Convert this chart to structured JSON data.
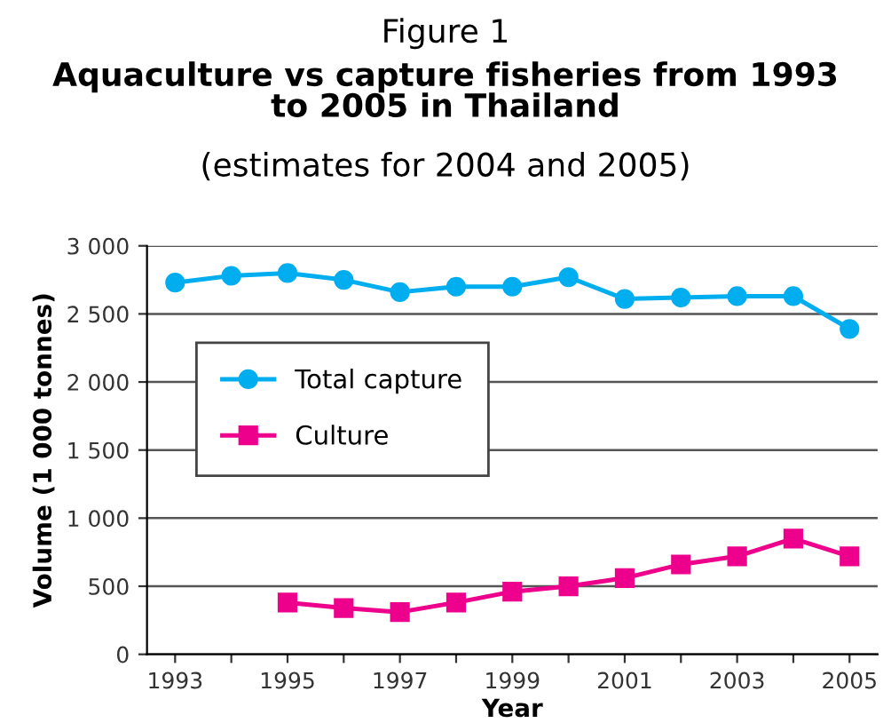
{
  "chart_data": {
    "type": "line",
    "title": "Aquaculture vs capture fisheries from 1993\nto 2005 in Thailand",
    "subtitle": "(estimates for 2004 and 2005)",
    "annotations": [
      "Figure 1"
    ],
    "xlabel": "Year",
    "ylabel": "Volume (1 000 tonnes)",
    "x": [
      1993,
      1994,
      1995,
      1996,
      1997,
      1998,
      1999,
      2000,
      2001,
      2002,
      2003,
      2004,
      2005
    ],
    "series": [
      {
        "name": "Total capture",
        "color": "#00aeef",
        "marker": "circle",
        "values": [
          2730,
          2780,
          2800,
          2750,
          2660,
          2700,
          2700,
          2770,
          2610,
          2620,
          2630,
          2630,
          2390
        ]
      },
      {
        "name": "Culture",
        "color": "#ec008c",
        "marker": "square",
        "values": [
          null,
          null,
          380,
          340,
          310,
          380,
          460,
          500,
          560,
          660,
          720,
          850,
          720
        ]
      }
    ],
    "xlim": [
      1992.5,
      2005.5
    ],
    "xticks": [
      1993,
      {
        "value": 1994,
        "label": null
      },
      1995,
      {
        "value": 1996,
        "label": null
      },
      1997,
      {
        "value": 1998,
        "label": null
      },
      1999,
      {
        "value": 2000,
        "label": null
      },
      2001,
      {
        "value": 2002,
        "label": null
      },
      2003,
      {
        "value": 2004,
        "label": null
      },
      2005
    ],
    "ylim": [
      0,
      3000
    ],
    "yticks": [
      {
        "value": 0,
        "label": "0"
      },
      {
        "value": 500,
        "label": "500"
      },
      {
        "value": 1000,
        "label": "1 000"
      },
      {
        "value": 1500,
        "label": "1 500"
      },
      {
        "value": 2000,
        "label": "2 000"
      },
      {
        "value": 2500,
        "label": "2 500"
      },
      {
        "value": 3000,
        "label": "3 000"
      }
    ],
    "grid": "y",
    "legend": "center left"
  }
}
